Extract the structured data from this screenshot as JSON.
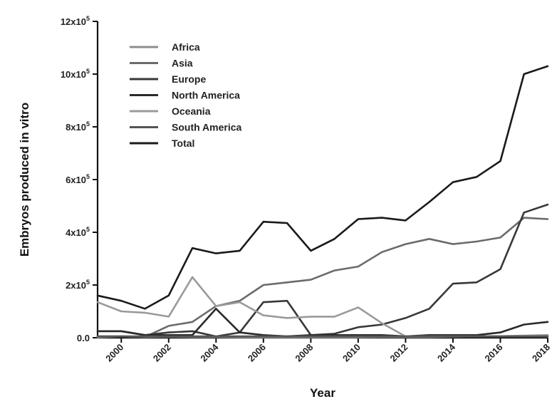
{
  "chart_data": {
    "type": "line",
    "xlabel": "Year",
    "ylabel": "Embryos produced in vitro",
    "xlim": [
      1999,
      2018
    ],
    "ylim": [
      0,
      1200000
    ],
    "x_ticks": [
      2000,
      2002,
      2004,
      2006,
      2008,
      2010,
      2012,
      2014,
      2016,
      2018
    ],
    "x_tick_labels": [
      "2000",
      "2002",
      "2004",
      "2006",
      "2008",
      "2010",
      "2012",
      "2014",
      "2016",
      "2018"
    ],
    "y_ticks": [
      0,
      200000,
      400000,
      600000,
      800000,
      1000000,
      1200000
    ],
    "y_tick_labels": [
      {
        "mantissa": "0.0",
        "exp": ""
      },
      {
        "mantissa": "2x10",
        "exp": "5"
      },
      {
        "mantissa": "4x10",
        "exp": "5"
      },
      {
        "mantissa": "6x10",
        "exp": "5"
      },
      {
        "mantissa": "8x10",
        "exp": "5"
      },
      {
        "mantissa": "10x10",
        "exp": "5"
      },
      {
        "mantissa": "12x10",
        "exp": "5"
      }
    ],
    "legend_position": "top-left",
    "grid": false,
    "x": [
      1999,
      2000,
      2001,
      2002,
      2003,
      2004,
      2005,
      2006,
      2007,
      2008,
      2009,
      2010,
      2011,
      2012,
      2013,
      2014,
      2015,
      2016,
      2017,
      2018
    ],
    "series": [
      {
        "name": "Africa",
        "color": "#8e8e8e",
        "values": [
          2000,
          5000,
          3000,
          4000,
          3000,
          3000,
          2000,
          2000,
          2000,
          2000,
          2000,
          2000,
          3000,
          3000,
          3000,
          4000,
          5000,
          6000,
          8000,
          10000
        ]
      },
      {
        "name": "Asia",
        "color": "#6b6b6b",
        "values": [
          5000,
          5000,
          3000,
          45000,
          60000,
          120000,
          140000,
          200000,
          210000,
          220000,
          255000,
          270000,
          325000,
          355000,
          375000,
          355000,
          365000,
          380000,
          455000,
          450000
        ]
      },
      {
        "name": "Europe",
        "color": "#383838",
        "values": [
          25000,
          25000,
          10000,
          20000,
          25000,
          5000,
          20000,
          135000,
          140000,
          10000,
          15000,
          40000,
          50000,
          75000,
          110000,
          205000,
          210000,
          260000,
          475000,
          505000
        ]
      },
      {
        "name": "North America",
        "color": "#2a2a2a",
        "values": [
          25000,
          25000,
          10000,
          10000,
          10000,
          110000,
          20000,
          10000,
          5000,
          10000,
          10000,
          10000,
          10000,
          5000,
          10000,
          10000,
          10000,
          20000,
          50000,
          60000
        ]
      },
      {
        "name": "Oceania",
        "color": "#9a9a9a",
        "values": [
          135000,
          100000,
          95000,
          80000,
          230000,
          120000,
          135000,
          85000,
          75000,
          80000,
          80000,
          115000,
          55000,
          5000,
          5000,
          5000,
          5000,
          5000,
          5000,
          5000
        ]
      },
      {
        "name": "South America",
        "color": "#555555",
        "values": [
          5000,
          5000,
          5000,
          5000,
          5000,
          5000,
          5000,
          5000,
          5000,
          5000,
          5000,
          5000,
          5000,
          5000,
          5000,
          5000,
          5000,
          5000,
          5000,
          5000
        ]
      },
      {
        "name": "Total",
        "color": "#1a1a1a",
        "values": [
          160000,
          140000,
          110000,
          160000,
          340000,
          320000,
          330000,
          440000,
          435000,
          330000,
          375000,
          450000,
          455000,
          445000,
          515000,
          590000,
          610000,
          670000,
          1000000,
          1030000
        ]
      }
    ]
  }
}
